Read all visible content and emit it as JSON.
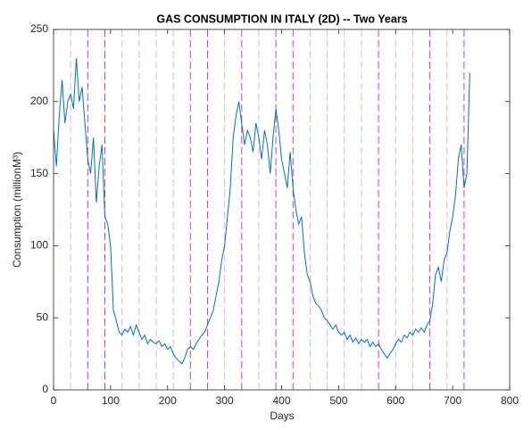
{
  "chart_data": {
    "type": "line",
    "title": "GAS CONSUMPTION IN ITALY (2D) -- Two Years",
    "xlabel": "Days",
    "ylabel": "Consumption (millionM³)",
    "x": [
      0,
      5,
      10,
      15,
      20,
      25,
      30,
      35,
      40,
      45,
      50,
      55,
      60,
      65,
      70,
      75,
      80,
      85,
      90,
      95,
      100,
      105,
      110,
      115,
      120,
      125,
      130,
      135,
      140,
      145,
      150,
      155,
      160,
      165,
      170,
      175,
      180,
      185,
      190,
      195,
      200,
      205,
      210,
      215,
      220,
      225,
      230,
      235,
      240,
      245,
      250,
      255,
      260,
      265,
      270,
      275,
      280,
      285,
      290,
      295,
      300,
      305,
      310,
      315,
      320,
      325,
      330,
      335,
      340,
      345,
      350,
      355,
      360,
      365,
      370,
      375,
      380,
      385,
      390,
      395,
      400,
      405,
      410,
      415,
      420,
      425,
      430,
      435,
      440,
      445,
      450,
      455,
      460,
      465,
      470,
      475,
      480,
      485,
      490,
      495,
      500,
      505,
      510,
      515,
      520,
      525,
      530,
      535,
      540,
      545,
      550,
      555,
      560,
      565,
      570,
      575,
      580,
      585,
      590,
      595,
      600,
      605,
      610,
      615,
      620,
      625,
      630,
      635,
      640,
      645,
      650,
      655,
      660,
      665,
      670,
      675,
      680,
      685,
      690,
      695,
      700,
      705,
      710,
      715,
      720,
      725,
      730
    ],
    "series": [
      {
        "color": "#0072bd",
        "values": [
          180,
          155,
          190,
          215,
          185,
          200,
          205,
          195,
          230,
          200,
          210,
          185,
          160,
          150,
          175,
          130,
          155,
          170,
          120,
          115,
          100,
          55,
          48,
          40,
          38,
          42,
          40,
          44,
          38,
          45,
          40,
          35,
          38,
          32,
          35,
          33,
          32,
          34,
          30,
          32,
          28,
          30,
          25,
          22,
          20,
          18,
          22,
          28,
          30,
          28,
          32,
          35,
          38,
          40,
          45,
          50,
          55,
          65,
          75,
          90,
          100,
          120,
          140,
          175,
          190,
          200,
          185,
          170,
          180,
          175,
          165,
          185,
          175,
          160,
          180,
          170,
          150,
          175,
          195,
          180,
          160,
          150,
          140,
          165,
          140,
          125,
          115,
          120,
          95,
          80,
          75,
          65,
          60,
          58,
          55,
          50,
          48,
          45,
          42,
          45,
          40,
          38,
          40,
          35,
          38,
          33,
          36,
          32,
          35,
          33,
          35,
          30,
          33,
          30,
          32,
          28,
          25,
          22,
          25,
          28,
          32,
          35,
          33,
          38,
          36,
          40,
          38,
          42,
          40,
          43,
          40,
          45,
          48,
          60,
          80,
          85,
          75,
          90,
          95,
          110,
          120,
          135,
          160,
          170,
          140,
          150,
          220
        ]
      }
    ],
    "vlines": {
      "x": [
        30,
        60,
        90,
        120,
        150,
        180,
        210,
        240,
        270,
        300,
        330,
        360,
        390,
        420,
        450,
        480,
        510,
        540,
        570,
        600,
        630,
        660,
        690,
        720
      ],
      "colors": [
        "#f0a8f0",
        "#c83cc8",
        "#c83cc8",
        "#f0a8f0",
        "#f0a8f0",
        "#f0a8f0",
        "#f0a8f0",
        "#c83cc8",
        "#c83cc8",
        "#f0a8f0",
        "#c83cc8",
        "#f0a8f0",
        "#c83cc8",
        "#c83cc8",
        "#f0a8f0",
        "#f0a8f0",
        "#f0a8f0",
        "#f0a8f0",
        "#c83cc8",
        "#f0a8f0",
        "#f0a8f0",
        "#c83cc8",
        "#f0a8f0",
        "#c83cc8"
      ]
    },
    "xlim": [
      0,
      800
    ],
    "xticks": [
      0,
      100,
      200,
      300,
      400,
      500,
      600,
      700,
      800
    ],
    "ylim": [
      0,
      250
    ],
    "yticks": [
      0,
      50,
      100,
      150,
      200,
      250
    ]
  }
}
